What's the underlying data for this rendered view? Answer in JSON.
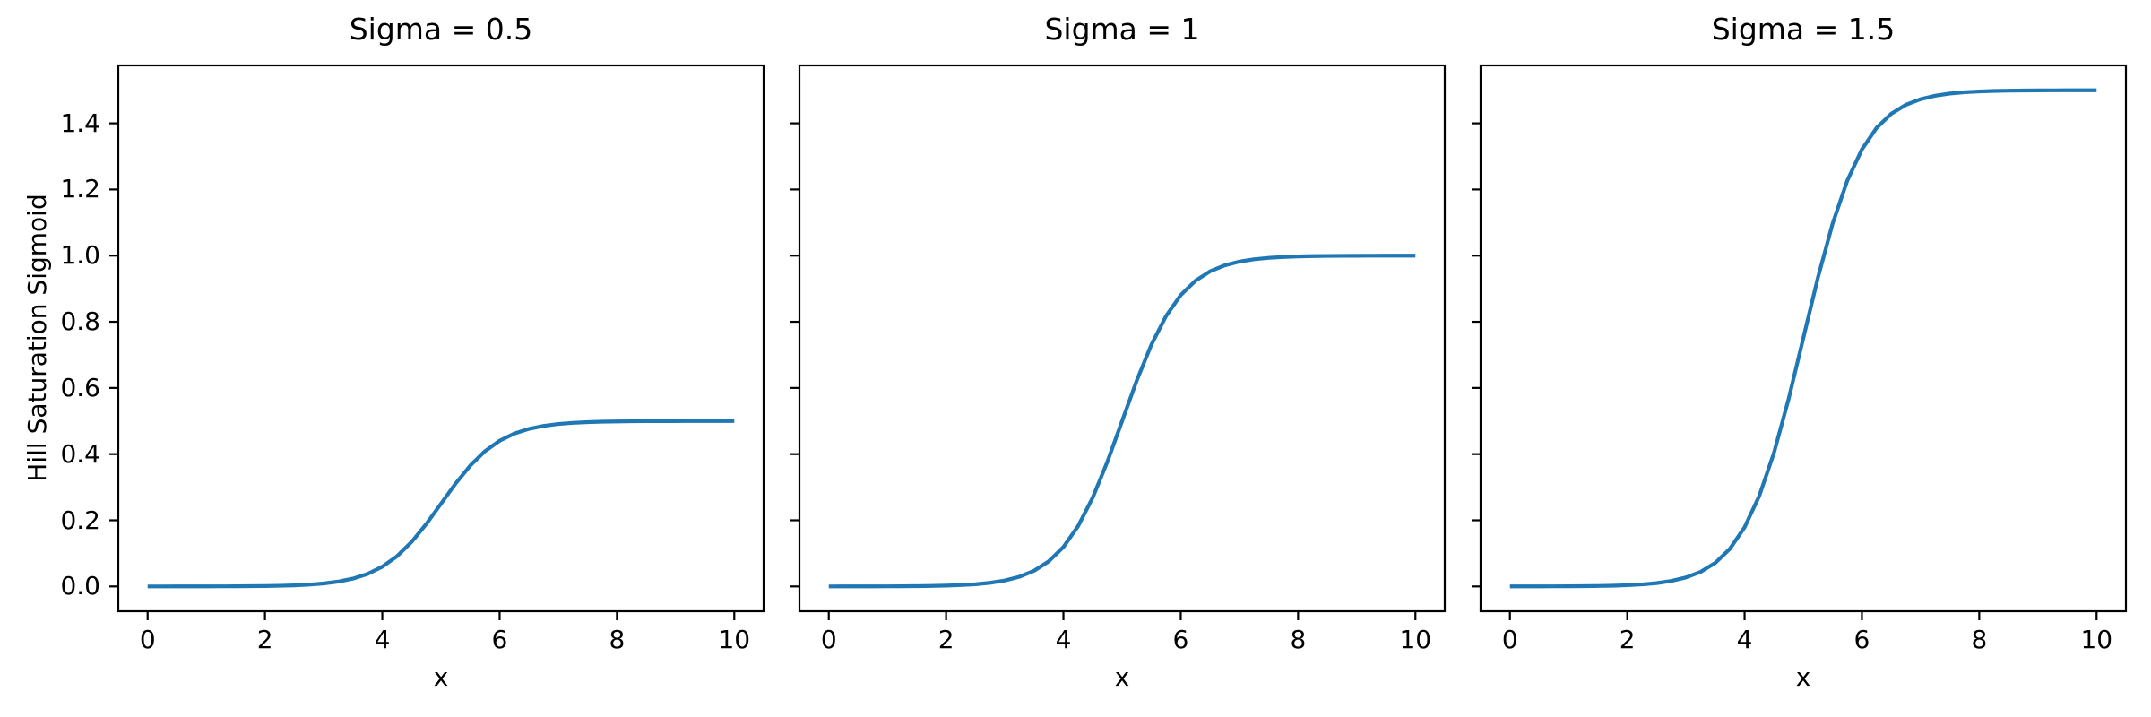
{
  "figure": {
    "background_color": "#ffffff",
    "text_color": "#000000",
    "spine_color": "#000000"
  },
  "chart_data": [
    {
      "type": "line",
      "title": "Sigma = 0.5",
      "sigma": 0.5,
      "xlabel": "x",
      "ylabel": "Hill Saturation Sigmoid",
      "xlim": [
        -0.5,
        10.5
      ],
      "ylim": [
        -0.075,
        1.575
      ],
      "xticks": [
        0,
        2,
        4,
        6,
        8,
        10
      ],
      "yticks": [
        0.0,
        0.2,
        0.4,
        0.6,
        0.8,
        1.0,
        1.2,
        1.4
      ],
      "show_ytick_labels": true,
      "grid": false,
      "legend": null,
      "line_color": "#1f77b4",
      "x": [
        0,
        0.25,
        0.5,
        0.75,
        1,
        1.25,
        1.5,
        1.75,
        2,
        2.25,
        2.5,
        2.75,
        3,
        3.25,
        3.5,
        3.75,
        4,
        4.25,
        4.5,
        4.75,
        5,
        5.25,
        5.5,
        5.75,
        6,
        6.25,
        6.5,
        6.75,
        7,
        7.25,
        7.5,
        7.75,
        8,
        8.25,
        8.5,
        8.75,
        9,
        9.25,
        9.5,
        9.75,
        10
      ],
      "values": [
        0.0,
        0.0,
        0.0001,
        0.0001,
        0.0002,
        0.0003,
        0.0005,
        0.0008,
        0.0012,
        0.002,
        0.0033,
        0.0055,
        0.009,
        0.0147,
        0.0237,
        0.0379,
        0.0596,
        0.0912,
        0.1345,
        0.1888,
        0.25,
        0.3112,
        0.3655,
        0.4088,
        0.4404,
        0.4621,
        0.4763,
        0.4853,
        0.491,
        0.4945,
        0.4967,
        0.498,
        0.4988,
        0.4992,
        0.4995,
        0.4997,
        0.4998,
        0.4999,
        0.4999,
        0.5,
        0.5
      ]
    },
    {
      "type": "line",
      "title": "Sigma = 1",
      "sigma": 1,
      "xlabel": "x",
      "ylabel": "",
      "xlim": [
        -0.5,
        10.5
      ],
      "ylim": [
        -0.075,
        1.575
      ],
      "xticks": [
        0,
        2,
        4,
        6,
        8,
        10
      ],
      "yticks": [
        0.0,
        0.2,
        0.4,
        0.6,
        0.8,
        1.0,
        1.2,
        1.4
      ],
      "show_ytick_labels": false,
      "grid": false,
      "legend": null,
      "line_color": "#1f77b4",
      "x": [
        0,
        0.25,
        0.5,
        0.75,
        1,
        1.25,
        1.5,
        1.75,
        2,
        2.25,
        2.5,
        2.75,
        3,
        3.25,
        3.5,
        3.75,
        4,
        4.25,
        4.5,
        4.75,
        5,
        5.25,
        5.5,
        5.75,
        6,
        6.25,
        6.5,
        6.75,
        7,
        7.25,
        7.5,
        7.75,
        8,
        8.25,
        8.5,
        8.75,
        9,
        9.25,
        9.5,
        9.75,
        10
      ],
      "values": [
        0.0,
        0.0001,
        0.0001,
        0.0002,
        0.0003,
        0.0006,
        0.0009,
        0.0015,
        0.0025,
        0.0041,
        0.0067,
        0.011,
        0.018,
        0.0293,
        0.0474,
        0.0759,
        0.1192,
        0.1824,
        0.2689,
        0.3775,
        0.5,
        0.6225,
        0.7311,
        0.8176,
        0.8808,
        0.9241,
        0.9526,
        0.9707,
        0.982,
        0.9889,
        0.9933,
        0.9959,
        0.9975,
        0.9985,
        0.9991,
        0.9994,
        0.9997,
        0.9998,
        0.9999,
        0.9999,
        1.0
      ]
    },
    {
      "type": "line",
      "title": "Sigma = 1.5",
      "sigma": 1.5,
      "xlabel": "x",
      "ylabel": "",
      "xlim": [
        -0.5,
        10.5
      ],
      "ylim": [
        -0.075,
        1.575
      ],
      "xticks": [
        0,
        2,
        4,
        6,
        8,
        10
      ],
      "yticks": [
        0.0,
        0.2,
        0.4,
        0.6,
        0.8,
        1.0,
        1.2,
        1.4
      ],
      "show_ytick_labels": false,
      "grid": false,
      "legend": null,
      "line_color": "#1f77b4",
      "x": [
        0,
        0.25,
        0.5,
        0.75,
        1,
        1.25,
        1.5,
        1.75,
        2,
        2.25,
        2.5,
        2.75,
        3,
        3.25,
        3.5,
        3.75,
        4,
        4.25,
        4.5,
        4.75,
        5,
        5.25,
        5.5,
        5.75,
        6,
        6.25,
        6.5,
        6.75,
        7,
        7.25,
        7.5,
        7.75,
        8,
        8.25,
        8.5,
        8.75,
        9,
        9.25,
        9.5,
        9.75,
        10
      ],
      "values": [
        0.0001,
        0.0001,
        0.0002,
        0.0003,
        0.0005,
        0.0008,
        0.0014,
        0.0023,
        0.0037,
        0.0061,
        0.01,
        0.0165,
        0.027,
        0.044,
        0.0711,
        0.1138,
        0.1788,
        0.2736,
        0.4034,
        0.5663,
        0.75,
        0.9337,
        1.0966,
        1.2264,
        1.3212,
        1.3862,
        1.4289,
        1.456,
        1.473,
        1.4834,
        1.49,
        1.4939,
        1.4963,
        1.4977,
        1.4986,
        1.4992,
        1.4995,
        1.4997,
        1.4998,
        1.4999,
        1.4999
      ]
    }
  ]
}
